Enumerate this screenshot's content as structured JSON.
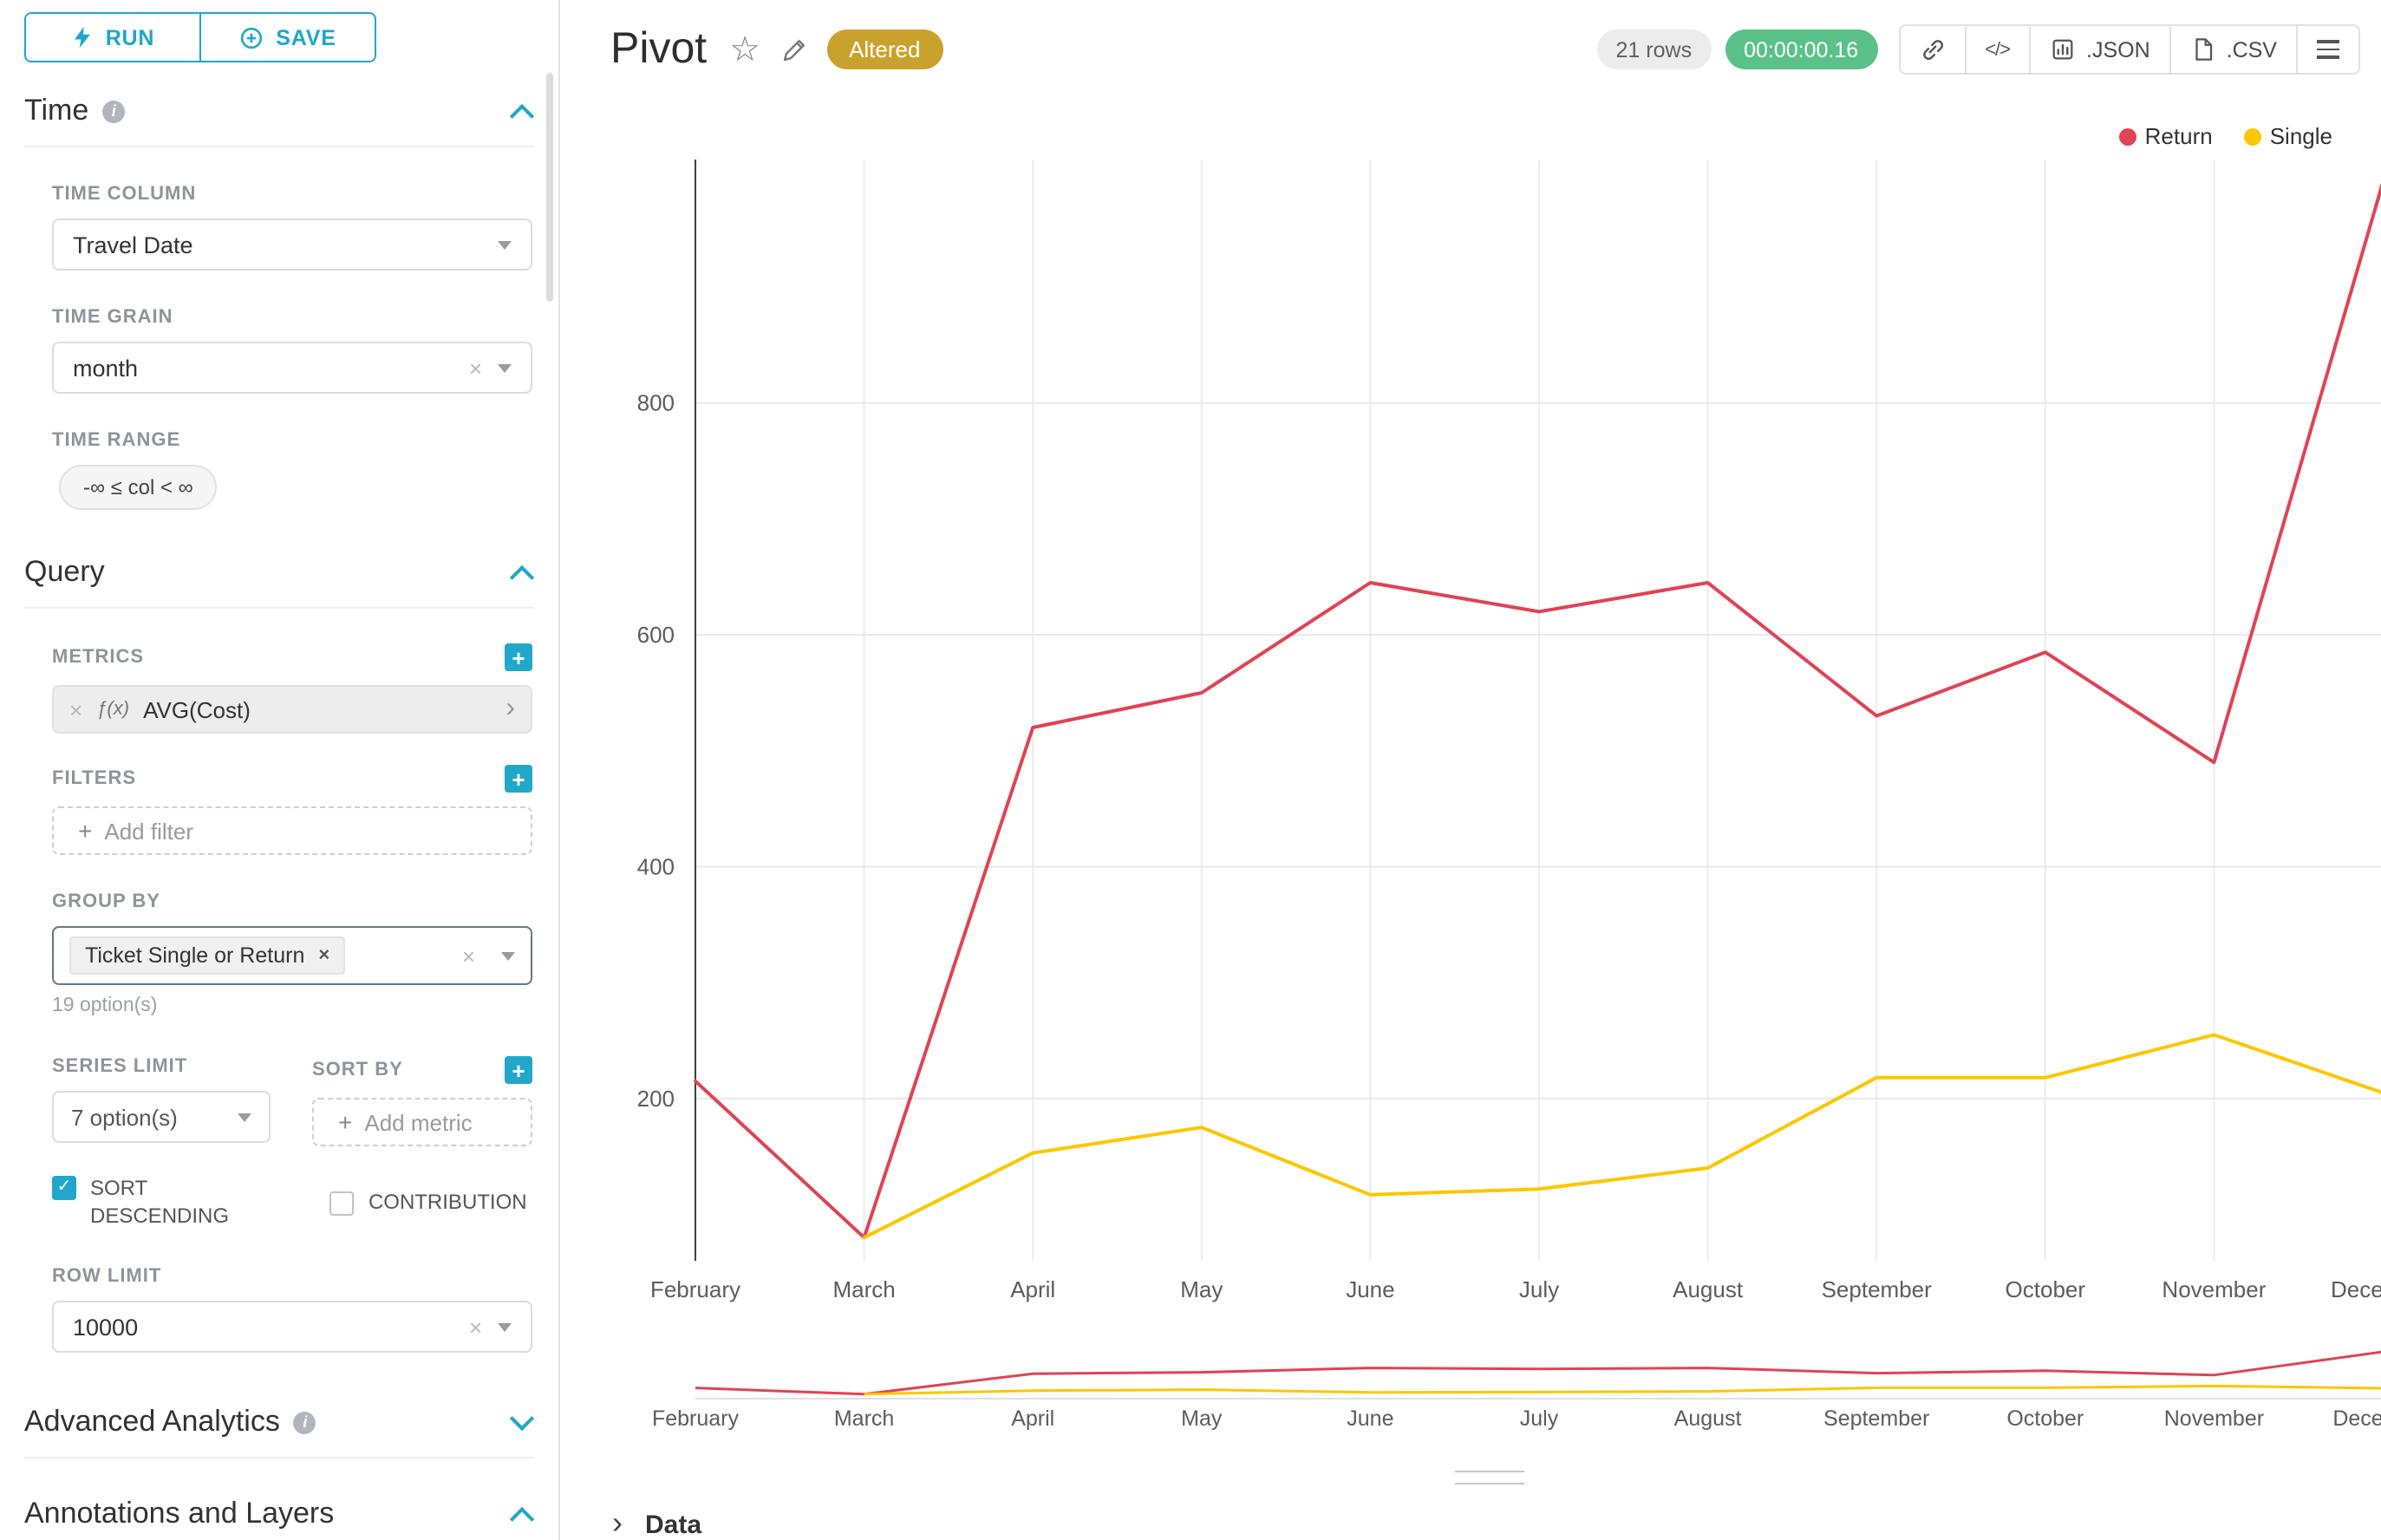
{
  "toolbar": {
    "run_label": "RUN",
    "save_label": "SAVE"
  },
  "sidebar": {
    "time": {
      "title": "Time",
      "time_column_label": "TIME COLUMN",
      "time_column_value": "Travel Date",
      "time_grain_label": "TIME GRAIN",
      "time_grain_value": "month",
      "time_range_label": "TIME RANGE",
      "time_range_value": "-∞ ≤ col < ∞"
    },
    "query": {
      "title": "Query",
      "metrics_label": "METRICS",
      "metric_fn": "ƒ(x)",
      "metric_value": "AVG(Cost)",
      "filters_label": "FILTERS",
      "add_filter_label": "Add filter",
      "group_by_label": "GROUP BY",
      "group_by_value": "Ticket Single or Return",
      "group_by_hint": "19 option(s)",
      "series_limit_label": "SERIES LIMIT",
      "series_limit_value": "7 option(s)",
      "sort_by_label": "SORT BY",
      "add_metric_label": "Add metric",
      "sort_descending_label": "SORT DESCENDING",
      "contribution_label": "CONTRIBUTION",
      "row_limit_label": "ROW LIMIT",
      "row_limit_value": "10000"
    },
    "advanced": {
      "title": "Advanced Analytics"
    },
    "annotations": {
      "title": "Annotations and Layers"
    }
  },
  "header": {
    "title": "Pivot",
    "altered_badge": "Altered",
    "rows_badge": "21 rows",
    "timer_badge": "00:00:00.16",
    "json_label": ".JSON",
    "csv_label": ".CSV"
  },
  "data_panel": {
    "title": "Data"
  },
  "icons": {
    "star": "☆",
    "close": "×",
    "plus": "+",
    "check": "✓",
    "caret_right": "›",
    "code": "</>",
    "chevron_right": "›",
    "info": "i"
  },
  "colors": {
    "primary": "#20a7c9",
    "altered_bg": "#c9a22d",
    "timer_bg": "#5ac189",
    "return_line": "#e04355",
    "single_line": "#fcc700"
  },
  "chart_data": {
    "type": "line",
    "title": "Pivot",
    "categories": [
      "February",
      "March",
      "April",
      "May",
      "June",
      "July",
      "August",
      "September",
      "October",
      "November",
      "December"
    ],
    "series": [
      {
        "name": "Return",
        "color": "#e04355",
        "values": [
          215,
          80,
          520,
          550,
          645,
          620,
          645,
          530,
          585,
          490,
          990
        ]
      },
      {
        "name": "Single",
        "color": "#fcc700",
        "values": [
          null,
          80,
          153,
          175,
          117,
          122,
          140,
          218,
          218,
          255,
          205
        ]
      }
    ],
    "xlabel": "",
    "ylabel": "",
    "yticks": [
      200,
      400,
      600,
      800
    ],
    "ylim": [
      60,
      1010
    ],
    "grid": true,
    "legend_position": "top-right",
    "has_mini_range_chart": true
  }
}
